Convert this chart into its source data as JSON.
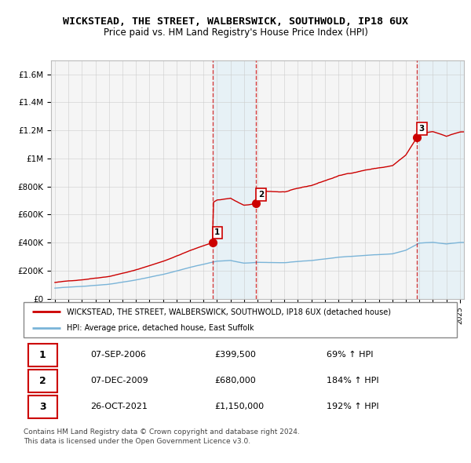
{
  "title": "WICKSTEAD, THE STREET, WALBERSWICK, SOUTHWOLD, IP18 6UX",
  "subtitle": "Price paid vs. HM Land Registry's House Price Index (HPI)",
  "legend_line1": "WICKSTEAD, THE STREET, WALBERSWICK, SOUTHWOLD, IP18 6UX (detached house)",
  "legend_line2": "HPI: Average price, detached house, East Suffolk",
  "footer1": "Contains HM Land Registry data © Crown copyright and database right 2024.",
  "footer2": "This data is licensed under the Open Government Licence v3.0.",
  "transactions": [
    {
      "num": 1,
      "date": "07-SEP-2006",
      "price": "£399,500",
      "pct": "69% ↑ HPI",
      "year": 2006.667
    },
    {
      "num": 2,
      "date": "07-DEC-2009",
      "price": "£680,000",
      "pct": "184% ↑ HPI",
      "year": 2009.917
    },
    {
      "num": 3,
      "date": "26-OCT-2021",
      "price": "£1,150,000",
      "pct": "192% ↑ HPI",
      "year": 2021.82
    }
  ],
  "sale_years": [
    2006.667,
    2009.917,
    2021.82
  ],
  "sale_prices": [
    399500,
    680000,
    1150000
  ],
  "ylim": [
    0,
    1700000
  ],
  "xlim_start": 1994.7,
  "xlim_end": 2025.3,
  "hpi_color": "#7ab4d8",
  "price_color": "#cc0000",
  "vline_color": "#cc0000",
  "shade_color": "#dceef7",
  "shade_alpha": 0.55,
  "bg_color": "#f5f5f5"
}
